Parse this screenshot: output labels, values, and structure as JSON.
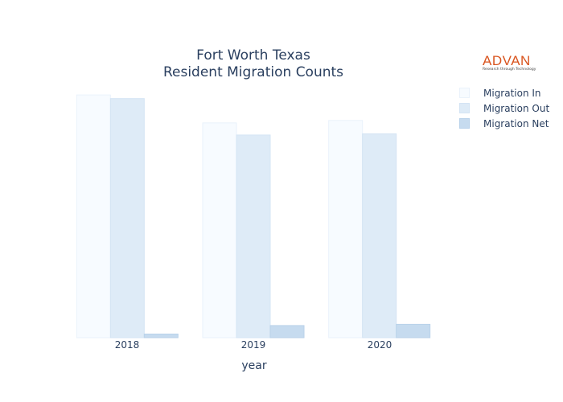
{
  "chart_data": {
    "type": "bar",
    "title": [
      "Fort Worth Texas",
      "Resident Migration Counts"
    ],
    "xlabel": "year",
    "ylabel": "",
    "categories": [
      "2018",
      "2019",
      "2020"
    ],
    "ylim": [
      0,
      1.06
    ],
    "series": [
      {
        "name": "Migration In",
        "values": [
          1.0,
          0.885,
          0.895
        ],
        "color": "#f7fbff",
        "stroke": "#eaf2fb"
      },
      {
        "name": "Migration Out",
        "values": [
          0.985,
          0.835,
          0.84
        ],
        "color": "#deebf7",
        "stroke": "#d4e4f4"
      },
      {
        "name": "Migration Net",
        "values": [
          0.015,
          0.05,
          0.055
        ],
        "color": "#c6dbef",
        "stroke": "#b9d2ea"
      }
    ],
    "legend_position": "top-right",
    "grid": false
  },
  "logo": {
    "main": "ADVAN",
    "sub": "Research through Technology"
  }
}
